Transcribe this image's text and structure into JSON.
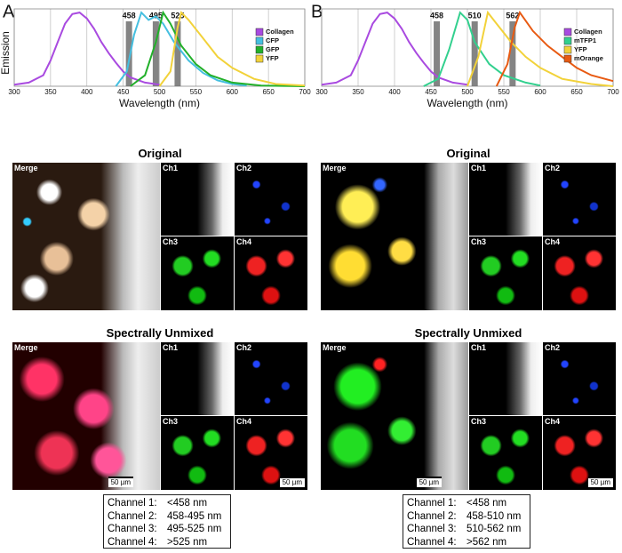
{
  "chart_data": [
    {
      "type": "line",
      "panel": "A",
      "y_label": "Emission",
      "x_label": "Wavelength (nm)",
      "xlim": [
        300,
        700
      ],
      "xticks": [
        300,
        350,
        400,
        450,
        500,
        550,
        600,
        650,
        700
      ],
      "ylim": [
        0,
        1.05
      ],
      "grid": true,
      "legend": "upper right",
      "vlines": [
        458,
        495,
        525
      ],
      "series": [
        {
          "name": "Collagen",
          "color": "#a94ae0",
          "x": [
            300,
            320,
            340,
            350,
            360,
            370,
            380,
            390,
            400,
            410,
            420,
            430,
            440,
            450,
            460,
            480,
            500
          ],
          "values": [
            0.02,
            0.05,
            0.15,
            0.35,
            0.6,
            0.85,
            0.98,
            1.0,
            0.92,
            0.78,
            0.6,
            0.45,
            0.32,
            0.2,
            0.12,
            0.05,
            0.02
          ]
        },
        {
          "name": "CFP",
          "color": "#45bfe0",
          "x": [
            440,
            455,
            465,
            475,
            485,
            495,
            505,
            520,
            540,
            560,
            580,
            600,
            620
          ],
          "values": [
            0,
            0.2,
            0.7,
            1.0,
            0.9,
            0.95,
            0.85,
            0.6,
            0.35,
            0.18,
            0.08,
            0.03,
            0.01
          ]
        },
        {
          "name": "GFP",
          "color": "#22b02a",
          "x": [
            460,
            480,
            495,
            505,
            515,
            530,
            550,
            570,
            600,
            640,
            700
          ],
          "values": [
            0,
            0.15,
            0.6,
            1.0,
            0.85,
            0.55,
            0.3,
            0.15,
            0.05,
            0.01,
            0
          ]
        },
        {
          "name": "YFP",
          "color": "#f2d23a",
          "x": [
            500,
            515,
            525,
            530,
            540,
            560,
            580,
            600,
            630,
            660,
            700
          ],
          "values": [
            0,
            0.2,
            0.8,
            1.0,
            0.9,
            0.65,
            0.4,
            0.25,
            0.1,
            0.03,
            0.01
          ]
        }
      ]
    },
    {
      "type": "line",
      "panel": "B",
      "x_label": "Wavelength (nm)",
      "xlim": [
        300,
        700
      ],
      "xticks": [
        300,
        350,
        400,
        450,
        500,
        550,
        600,
        650,
        700
      ],
      "ylim": [
        0,
        1.05
      ],
      "grid": true,
      "legend": "upper right",
      "vlines": [
        458,
        510,
        562
      ],
      "series": [
        {
          "name": "Collagen",
          "color": "#a94ae0",
          "x": [
            300,
            320,
            340,
            350,
            360,
            370,
            380,
            390,
            400,
            410,
            420,
            430,
            440,
            450,
            460,
            480,
            500
          ],
          "values": [
            0.02,
            0.05,
            0.15,
            0.35,
            0.6,
            0.85,
            0.98,
            1.0,
            0.92,
            0.78,
            0.6,
            0.45,
            0.32,
            0.2,
            0.12,
            0.05,
            0.02
          ]
        },
        {
          "name": "mTFP1",
          "color": "#32d08e",
          "x": [
            440,
            460,
            475,
            490,
            500,
            510,
            530,
            550,
            580,
            600
          ],
          "values": [
            0,
            0.1,
            0.5,
            1.0,
            0.9,
            0.6,
            0.3,
            0.15,
            0.05,
            0.01
          ]
        },
        {
          "name": "YFP",
          "color": "#f2d23a",
          "x": [
            500,
            515,
            528,
            540,
            560,
            580,
            600,
            630,
            670,
            700
          ],
          "values": [
            0,
            0.4,
            1.0,
            0.85,
            0.6,
            0.4,
            0.25,
            0.1,
            0.03,
            0
          ]
        },
        {
          "name": "mOrange",
          "color": "#e85a12",
          "x": [
            540,
            555,
            565,
            572,
            590,
            610,
            630,
            650,
            670,
            700
          ],
          "values": [
            0,
            0.3,
            0.8,
            1.0,
            0.75,
            0.55,
            0.4,
            0.25,
            0.15,
            0.07
          ]
        }
      ]
    }
  ],
  "image_panels": [
    {
      "rows": [
        {
          "title": "Original",
          "labels": [
            "Merge",
            "Ch1",
            "Ch2",
            "Ch3",
            "Ch4"
          ]
        },
        {
          "title": "Spectrally Unmixed",
          "labels": [
            "Merge",
            "Ch1",
            "Ch2",
            "Ch3",
            "Ch4"
          ],
          "scale_bars": [
            "50 µm",
            "50 µm"
          ]
        }
      ],
      "channels": [
        [
          "Channel 1:",
          "<458 nm"
        ],
        [
          "Channel 2:",
          "458-495 nm"
        ],
        [
          "Channel 3:",
          "495-525 nm"
        ],
        [
          "Channel 4:",
          ">525 nm"
        ]
      ]
    },
    {
      "rows": [
        {
          "title": "Original",
          "labels": [
            "Merge",
            "Ch1",
            "Ch2",
            "Ch3",
            "Ch4"
          ]
        },
        {
          "title": "Spectrally Unmixed",
          "labels": [
            "Merge",
            "Ch1",
            "Ch2",
            "Ch3",
            "Ch4"
          ],
          "scale_bars": [
            "50 µm",
            "50 µm"
          ]
        }
      ],
      "channels": [
        [
          "Channel 1:",
          "<458 nm"
        ],
        [
          "Channel 2:",
          "458-510 nm"
        ],
        [
          "Channel 3:",
          "510-562 nm"
        ],
        [
          "Channel 4:",
          ">562 nm"
        ]
      ]
    }
  ]
}
